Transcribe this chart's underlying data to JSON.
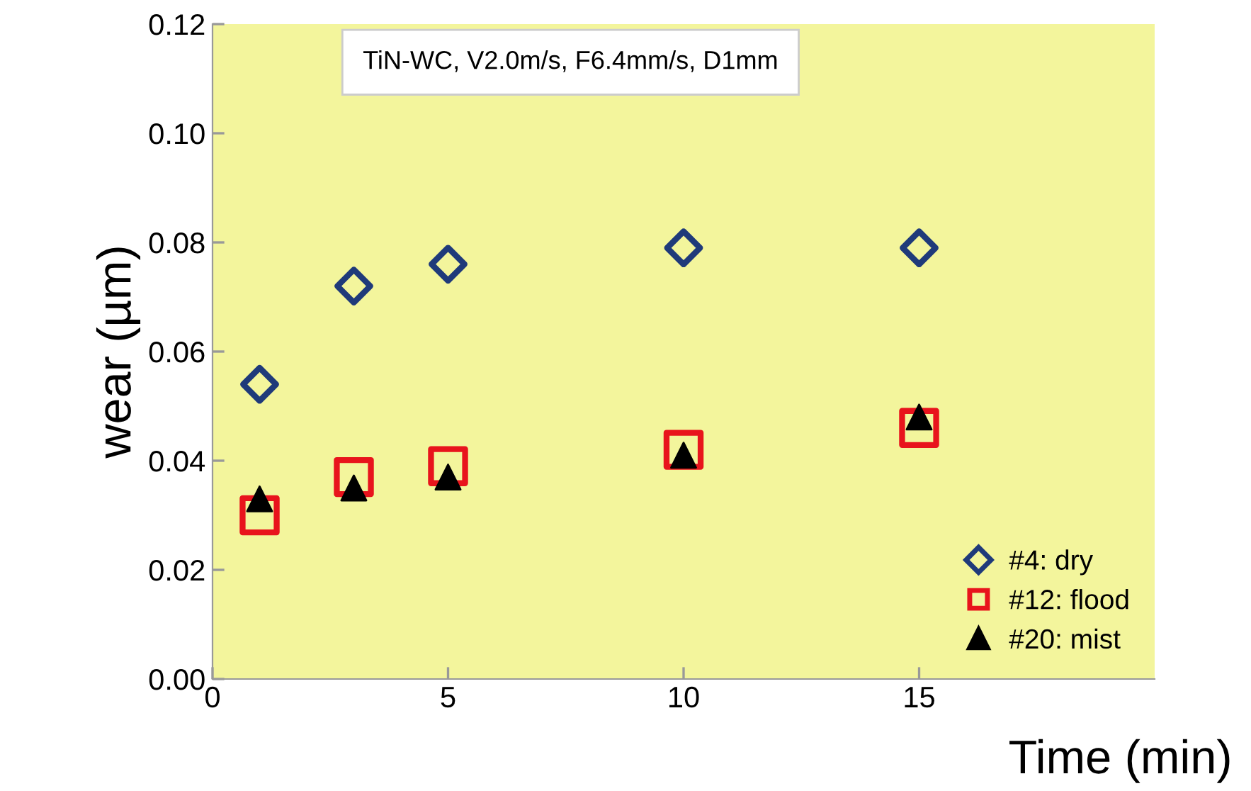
{
  "chart_data": {
    "type": "scatter",
    "title": "TiN-WC, V2.0m/s, F6.4mm/s, D1mm",
    "xlabel": "Time (min)",
    "ylabel": "wear (µm)",
    "x": [
      1,
      3,
      5,
      10,
      15
    ],
    "series": [
      {
        "name": "#4: dry",
        "color": "#1f3a7a",
        "marker": "diamond",
        "values": [
          0.054,
          0.072,
          0.076,
          0.079,
          0.079
        ]
      },
      {
        "name": "#12: flood",
        "color": "#e8141c",
        "marker": "square",
        "values": [
          0.03,
          0.037,
          0.039,
          0.042,
          0.046
        ]
      },
      {
        "name": "#20: mist",
        "color": "#000000",
        "marker": "triangle",
        "values": [
          0.033,
          0.035,
          0.037,
          0.041,
          0.048
        ]
      }
    ],
    "xlim": [
      0,
      20
    ],
    "xticks": [
      0,
      5,
      10,
      15
    ],
    "ylim": [
      0,
      0.12
    ],
    "yticks": [
      {
        "value": 0,
        "label": "0.00"
      },
      {
        "value": 0.02,
        "label": "0.02"
      },
      {
        "value": 0.04,
        "label": "0.04"
      },
      {
        "value": 0.06,
        "label": "0.06"
      },
      {
        "value": 0.08,
        "label": "0.08"
      },
      {
        "value": 0.1,
        "label": "0.10"
      },
      {
        "value": 0.12,
        "label": "0.12"
      }
    ],
    "grid": false,
    "legend": "bottom right"
  }
}
